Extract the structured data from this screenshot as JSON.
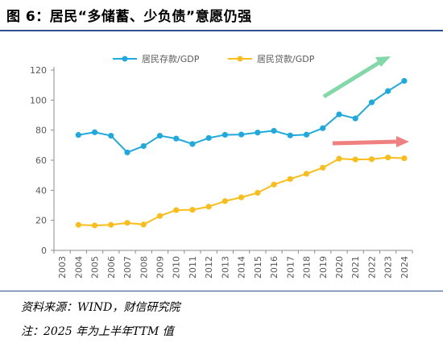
{
  "figure": {
    "title": "图 6：居民“多储蓄、少负债”意愿仍强",
    "source": "资料来源：WIND，财信研究院",
    "note": "注：2025 年为上半年TTM 值"
  },
  "colors": {
    "deposits": "#1fa9dd",
    "loans": "#f9be1b",
    "up_arrow": "#82d8a8",
    "right_arrow": "#f08080",
    "frame": "#2f4f8f"
  },
  "chart_data": {
    "type": "line",
    "categories": [
      "2003",
      "2004",
      "2005",
      "2006",
      "2007",
      "2008",
      "2009",
      "2010",
      "2011",
      "2012",
      "2013",
      "2014",
      "2015",
      "2016",
      "2017",
      "2018",
      "2019",
      "2020",
      "2021",
      "2022",
      "2023",
      "2024"
    ],
    "series": [
      {
        "name": "居民存款/GDP",
        "color": "#1fa9dd",
        "values": [
          null,
          76.8,
          78.6,
          76.3,
          65.2,
          69.4,
          76.3,
          74.4,
          70.8,
          74.8,
          76.9,
          77.1,
          78.4,
          79.6,
          76.5,
          77.0,
          81.3,
          90.5,
          87.8,
          98.5,
          106.0,
          112.8
        ]
      },
      {
        "name": "居民贷款/GDP",
        "color": "#f9be1b",
        "values": [
          null,
          17.0,
          16.6,
          17.0,
          18.3,
          17.2,
          22.9,
          26.8,
          27.0,
          29.1,
          32.8,
          35.3,
          38.3,
          43.8,
          47.5,
          51.0,
          55.0,
          61.0,
          60.5,
          60.7,
          61.8,
          61.3
        ]
      }
    ],
    "ylim": [
      0,
      120
    ],
    "yticks": [
      0,
      20,
      40,
      60,
      80,
      100,
      120
    ],
    "xlabel": "",
    "ylabel": "",
    "grid": false,
    "legend": "top-center"
  }
}
